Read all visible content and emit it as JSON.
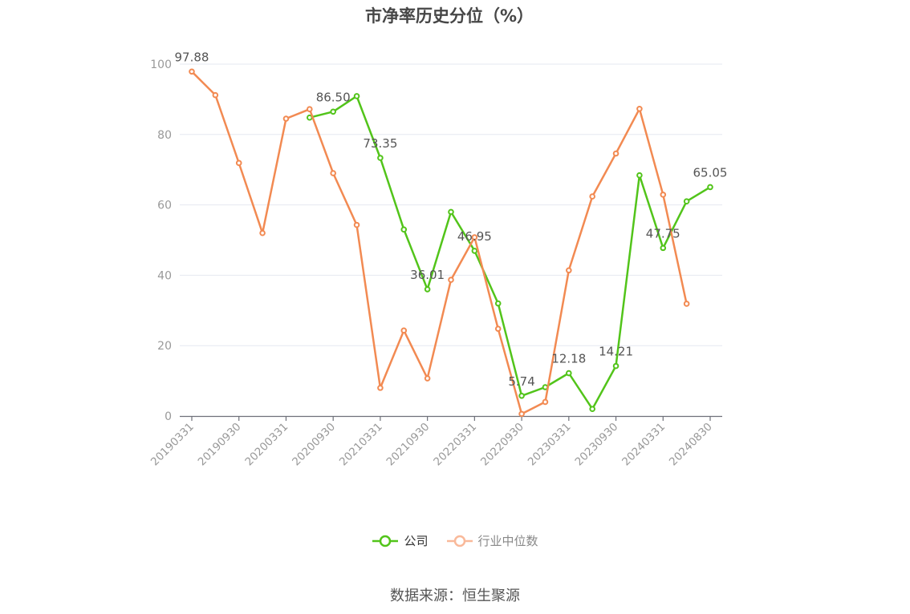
{
  "chart_data": {
    "type": "line",
    "title": "市净率历史分位（%）",
    "x": [
      "20190331",
      "20190630",
      "20190930",
      "20191231",
      "20200331",
      "20200630",
      "20200930",
      "20201231",
      "20210331",
      "20210630",
      "20210930",
      "20211231",
      "20220331",
      "20220630",
      "20220930",
      "20221231",
      "20230331",
      "20230630",
      "20230930",
      "20231231",
      "20240331",
      "20240630",
      "20240830"
    ],
    "x_tick_labels": [
      "20190331",
      "20190930",
      "20200331",
      "20200930",
      "20210331",
      "20210930",
      "20220331",
      "20220930",
      "20230331",
      "20230930",
      "20240331",
      "20240830"
    ],
    "ylim": [
      0,
      100
    ],
    "y_ticks": [
      0,
      20,
      40,
      60,
      80,
      100
    ],
    "grid": true,
    "legend_position": "bottom",
    "series": [
      {
        "name": "公司",
        "color": "#52c41a",
        "values": [
          null,
          null,
          null,
          null,
          null,
          84.8,
          86.5,
          90.9,
          73.35,
          53.0,
          36.01,
          58.0,
          46.95,
          32.0,
          5.74,
          8.2,
          12.18,
          2.0,
          14.21,
          68.4,
          47.75,
          61.0,
          65.05
        ]
      },
      {
        "name": "行业中位数",
        "color": "#f28a52",
        "values": [
          97.88,
          91.2,
          71.9,
          52.0,
          84.5,
          87.2,
          69.0,
          54.3,
          8.0,
          24.3,
          10.7,
          38.7,
          50.8,
          24.8,
          0.6,
          4.0,
          41.4,
          62.4,
          74.6,
          87.3,
          62.9,
          31.9,
          null
        ]
      }
    ],
    "data_labels": [
      {
        "series": 1,
        "index": 0,
        "text": "97.88"
      },
      {
        "series": 0,
        "index": 6,
        "text": "86.50"
      },
      {
        "series": 0,
        "index": 8,
        "text": "73.35"
      },
      {
        "series": 0,
        "index": 10,
        "text": "36.01"
      },
      {
        "series": 0,
        "index": 12,
        "text": "46.95"
      },
      {
        "series": 0,
        "index": 14,
        "text": "5.74"
      },
      {
        "series": 0,
        "index": 16,
        "text": "12.18"
      },
      {
        "series": 0,
        "index": 18,
        "text": "14.21"
      },
      {
        "series": 0,
        "index": 20,
        "text": "47.75"
      },
      {
        "series": 0,
        "index": 22,
        "text": "65.05"
      }
    ]
  },
  "legend": {
    "company_label": "公司",
    "industry_label": "行业中位数"
  },
  "colors": {
    "company": "#52c41a",
    "industry": "#f28a52",
    "industry_legend": "#f9b99a",
    "grid": "#e6e8f0",
    "axis": "#6e7079",
    "tick_text": "#999999",
    "label_text": "#555555"
  },
  "source": "数据来源：恒生聚源"
}
